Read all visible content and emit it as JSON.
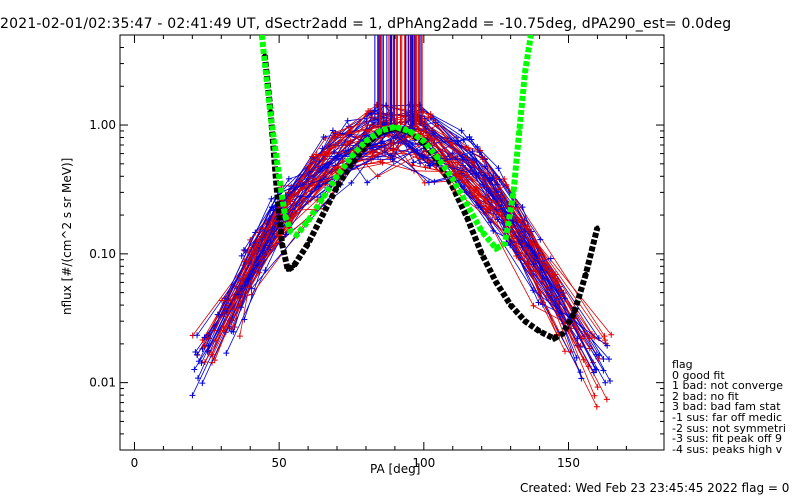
{
  "chart_data": {
    "type": "scatter",
    "title": "2021-02-01/02:35:47 - 02:41:49 UT, dSectr2add = 1, dPhAng2add = -10.75deg, dPA290_est=    0.0deg",
    "xlabel": "PA [deg]",
    "ylabel": "nflux [#/(cm^2 s sr MeV)]",
    "xlim": [
      -5,
      183
    ],
    "ylim": [
      0.003,
      5.0
    ],
    "yscale": "log",
    "xticks": [
      0,
      50,
      100,
      150
    ],
    "yticks": [
      0.01,
      0.1,
      1.0
    ],
    "ytick_labels": [
      "0.01",
      "0.10",
      "1.00"
    ],
    "xtick_labels": [
      "0",
      "50",
      "100",
      "150"
    ],
    "legend": {
      "title": "flag",
      "placement": "right",
      "entries": [
        " 0 good fit",
        " 1 bad: not converge",
        " 2 bad: no fit",
        " 3 bad: bad fam stat",
        "-1 sus: far off medic",
        "-2 sus: not symmetri",
        "-3 sus: fit peak off 9",
        "-4 sus: peaks high v"
      ]
    },
    "footer": "Created: Wed Feb 23 23:45:45 2022   flag = 0",
    "series": [
      {
        "color": "#000000",
        "style": "dashed-thick",
        "x": [
          45,
          47,
          49,
          51,
          53,
          55,
          60,
          65,
          70,
          75,
          80,
          85,
          90,
          95,
          100,
          105,
          110,
          115,
          120,
          125,
          130,
          135,
          140,
          145,
          148,
          152,
          156,
          160
        ],
        "y": [
          3.5,
          1.3,
          0.35,
          0.12,
          0.075,
          0.08,
          0.12,
          0.2,
          0.33,
          0.5,
          0.7,
          0.88,
          0.95,
          0.88,
          0.72,
          0.52,
          0.33,
          0.19,
          0.1,
          0.06,
          0.04,
          0.03,
          0.025,
          0.022,
          0.024,
          0.035,
          0.07,
          0.16
        ]
      },
      {
        "color": "#00ff00",
        "style": "dashed-thick",
        "x": [
          44,
          47,
          50,
          52,
          54,
          56,
          60,
          65,
          70,
          75,
          80,
          85,
          90,
          95,
          100,
          105,
          110,
          115,
          120,
          125,
          128,
          131,
          133,
          135,
          137
        ],
        "y": [
          5.0,
          1.2,
          0.4,
          0.2,
          0.15,
          0.14,
          0.18,
          0.27,
          0.4,
          0.57,
          0.75,
          0.9,
          0.97,
          0.9,
          0.75,
          0.55,
          0.38,
          0.24,
          0.15,
          0.11,
          0.12,
          0.3,
          0.9,
          2.6,
          5.0
        ]
      }
    ]
  }
}
